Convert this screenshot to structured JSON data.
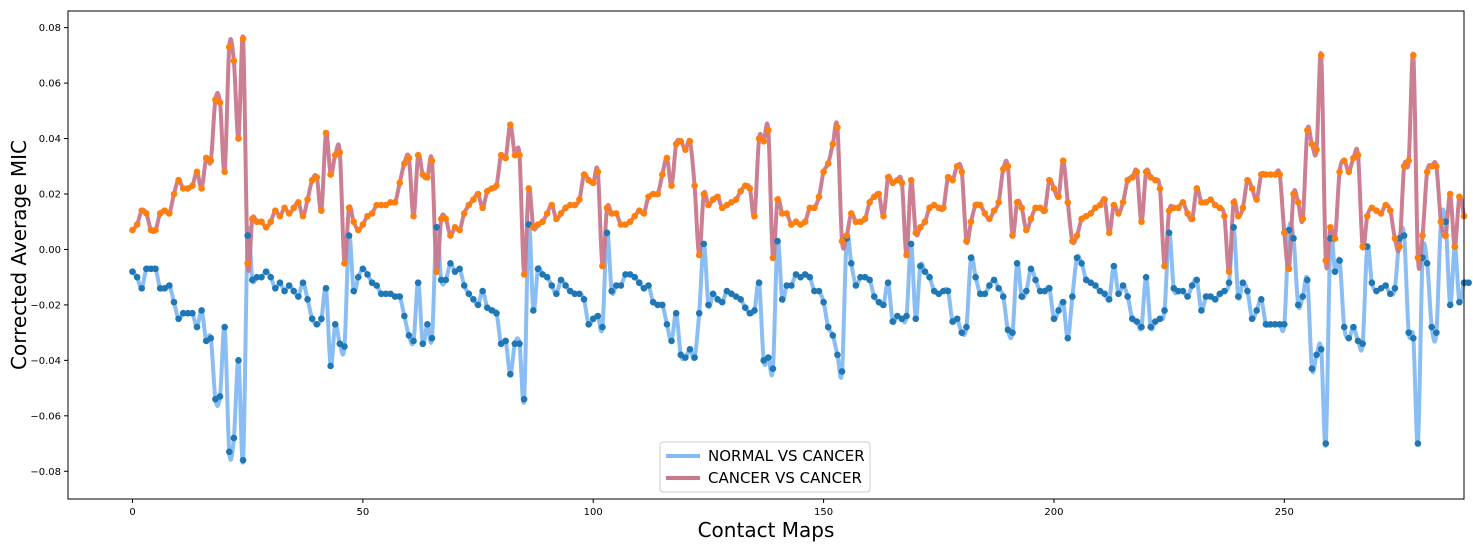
{
  "chart_data": {
    "type": "line",
    "title": "",
    "xlabel": "Contact Maps",
    "ylabel": "Corrected Average MIC",
    "xlim": [
      -14,
      289
    ],
    "ylim": [
      -0.09,
      0.086
    ],
    "xticks": [
      0,
      50,
      100,
      150,
      200,
      250
    ],
    "yticks": [
      -0.08,
      -0.06,
      -0.04,
      -0.02,
      0.0,
      0.02,
      0.04,
      0.06,
      0.08
    ],
    "xtick_labels": [
      "0",
      "50",
      "100",
      "150",
      "200",
      "250"
    ],
    "ytick_labels": [
      "−0.08",
      "−0.06",
      "−0.04",
      "−0.02",
      "0.00",
      "0.02",
      "0.04",
      "0.06",
      "0.08"
    ],
    "grid": false,
    "legend_placement": "lower-center",
    "x_start": 0,
    "series": [
      {
        "name": "CANCER VS CANCER",
        "line_color": "#c9788c",
        "marker_color": "#ff7f0e",
        "values": [
          0.007,
          0.009,
          0.014,
          0.013,
          0.007,
          0.007,
          0.013,
          0.014,
          0.013,
          0.02,
          0.025,
          0.022,
          0.022,
          0.023,
          0.028,
          0.022,
          0.033,
          0.032,
          0.054,
          0.053,
          0.028,
          0.073,
          0.068,
          0.04,
          0.076,
          -0.005,
          0.011,
          0.01,
          0.01,
          0.008,
          0.01,
          0.014,
          0.012,
          0.015,
          0.013,
          0.015,
          0.017,
          0.012,
          0.018,
          0.025,
          0.026,
          0.014,
          0.042,
          0.027,
          0.034,
          0.035,
          -0.005,
          0.015,
          0.01,
          0.007,
          0.009,
          0.012,
          0.013,
          0.016,
          0.016,
          0.016,
          0.017,
          0.017,
          0.024,
          0.031,
          0.033,
          0.012,
          0.034,
          0.027,
          0.026,
          0.032,
          -0.008,
          0.011,
          0.011,
          0.005,
          0.008,
          0.007,
          0.013,
          0.016,
          0.018,
          0.02,
          0.015,
          0.021,
          0.022,
          0.023,
          0.034,
          0.033,
          0.045,
          0.034,
          0.034,
          -0.009,
          0.022,
          0.008,
          0.009,
          0.01,
          0.013,
          0.016,
          0.011,
          0.013,
          0.015,
          0.016,
          0.016,
          0.018,
          0.027,
          0.025,
          0.024,
          0.028,
          -0.006,
          0.015,
          0.013,
          0.013,
          0.009,
          0.009,
          0.01,
          0.012,
          0.014,
          0.013,
          0.019,
          0.02,
          0.02,
          0.027,
          0.033,
          0.023,
          0.038,
          0.039,
          0.036,
          0.039,
          0.023,
          -0.002,
          0.02,
          0.016,
          0.018,
          0.019,
          0.015,
          0.016,
          0.017,
          0.018,
          0.021,
          0.023,
          0.022,
          0.012,
          0.04,
          0.039,
          0.043,
          -0.003,
          0.018,
          0.013,
          0.013,
          0.009,
          0.01,
          0.009,
          0.01,
          0.015,
          0.015,
          0.019,
          0.028,
          0.031,
          0.038,
          0.044,
          0.003,
          0.005,
          0.013,
          0.01,
          0.01,
          0.011,
          0.017,
          0.019,
          0.02,
          0.012,
          0.026,
          0.024,
          0.025,
          0.024,
          -0.002,
          0.025,
          0.006,
          0.008,
          0.01,
          0.015,
          0.016,
          0.015,
          0.015,
          0.026,
          0.025,
          0.03,
          0.028,
          0.003,
          0.01,
          0.016,
          0.016,
          0.013,
          0.011,
          0.014,
          0.017,
          0.029,
          0.03,
          0.005,
          0.017,
          0.015,
          0.007,
          0.011,
          0.015,
          0.015,
          0.014,
          0.025,
          0.022,
          0.019,
          0.032,
          0.017,
          0.003,
          0.005,
          0.011,
          0.012,
          0.013,
          0.015,
          0.016,
          0.018,
          0.006,
          0.016,
          0.013,
          0.017,
          0.025,
          0.026,
          0.028,
          0.01,
          0.028,
          0.026,
          0.025,
          0.022,
          -0.006,
          0.014,
          0.015,
          0.015,
          0.017,
          0.013,
          0.011,
          0.022,
          0.017,
          0.017,
          0.018,
          0.016,
          0.015,
          0.012,
          -0.008,
          0.017,
          0.012,
          0.015,
          0.025,
          0.022,
          0.018,
          0.027,
          0.027,
          0.027,
          0.027,
          0.027,
          0.006,
          -0.007,
          0.02,
          0.017,
          0.011,
          0.043,
          0.038,
          0.036,
          0.07,
          -0.004,
          0.008,
          0.004,
          0.028,
          0.032,
          0.028,
          0.033,
          0.034,
          0.001,
          0.012,
          0.015,
          0.014,
          0.013,
          0.016,
          0.014,
          0.004,
          0.001,
          0.03,
          0.032,
          0.07,
          -0.003,
          0.005,
          0.028,
          0.03,
          0.03,
          0.01,
          0.005,
          0.02,
          0.001,
          0.019,
          0.012
        ]
      },
      {
        "name": "NORMAL VS CANCER",
        "line_color": "#84b9f2",
        "marker_color": "#1f77b4",
        "values": [
          -0.008,
          -0.01,
          -0.014,
          -0.007,
          -0.007,
          -0.007,
          -0.014,
          -0.014,
          -0.013,
          -0.019,
          -0.025,
          -0.023,
          -0.023,
          -0.023,
          -0.028,
          -0.022,
          -0.033,
          -0.032,
          -0.054,
          -0.053,
          -0.028,
          -0.073,
          -0.068,
          -0.04,
          -0.076,
          0.005,
          -0.011,
          -0.01,
          -0.01,
          -0.008,
          -0.01,
          -0.014,
          -0.012,
          -0.015,
          -0.013,
          -0.015,
          -0.017,
          -0.012,
          -0.018,
          -0.025,
          -0.027,
          -0.025,
          -0.014,
          -0.042,
          -0.027,
          -0.034,
          -0.035,
          0.005,
          -0.015,
          -0.01,
          -0.007,
          -0.009,
          -0.012,
          -0.013,
          -0.016,
          -0.016,
          -0.016,
          -0.017,
          -0.017,
          -0.024,
          -0.031,
          -0.033,
          -0.012,
          -0.034,
          -0.027,
          -0.032,
          0.008,
          -0.011,
          -0.011,
          -0.005,
          -0.008,
          -0.007,
          -0.013,
          -0.016,
          -0.018,
          -0.02,
          -0.015,
          -0.021,
          -0.022,
          -0.023,
          -0.034,
          -0.033,
          -0.045,
          -0.034,
          -0.034,
          -0.054,
          0.009,
          -0.022,
          -0.007,
          -0.009,
          -0.01,
          -0.013,
          -0.016,
          -0.011,
          -0.013,
          -0.015,
          -0.016,
          -0.016,
          -0.018,
          -0.027,
          -0.025,
          -0.024,
          -0.028,
          0.006,
          -0.015,
          -0.013,
          -0.013,
          -0.009,
          -0.009,
          -0.01,
          -0.012,
          -0.014,
          -0.013,
          -0.019,
          -0.02,
          -0.02,
          -0.027,
          -0.033,
          -0.023,
          -0.038,
          -0.039,
          -0.036,
          -0.039,
          -0.023,
          0.002,
          -0.02,
          -0.016,
          -0.018,
          -0.019,
          -0.015,
          -0.016,
          -0.017,
          -0.018,
          -0.021,
          -0.023,
          -0.022,
          -0.012,
          -0.04,
          -0.039,
          -0.043,
          0.003,
          -0.018,
          -0.013,
          -0.013,
          -0.009,
          -0.01,
          -0.009,
          -0.01,
          -0.015,
          -0.015,
          -0.019,
          -0.028,
          -0.031,
          -0.038,
          -0.044,
          0.004,
          -0.005,
          -0.013,
          -0.01,
          -0.01,
          -0.011,
          -0.017,
          -0.019,
          -0.02,
          -0.012,
          -0.026,
          -0.024,
          -0.025,
          -0.024,
          0.002,
          -0.025,
          -0.006,
          -0.008,
          -0.01,
          -0.015,
          -0.016,
          -0.015,
          -0.015,
          -0.026,
          -0.025,
          -0.03,
          -0.028,
          -0.003,
          -0.01,
          -0.016,
          -0.016,
          -0.013,
          -0.011,
          -0.014,
          -0.017,
          -0.029,
          -0.03,
          -0.005,
          -0.017,
          -0.015,
          -0.007,
          -0.011,
          -0.015,
          -0.015,
          -0.014,
          -0.025,
          -0.022,
          -0.019,
          -0.032,
          -0.017,
          -0.003,
          -0.005,
          -0.011,
          -0.012,
          -0.013,
          -0.015,
          -0.016,
          -0.018,
          -0.006,
          -0.016,
          -0.013,
          -0.017,
          -0.025,
          -0.026,
          -0.028,
          -0.01,
          -0.028,
          -0.026,
          -0.025,
          -0.022,
          0.006,
          -0.014,
          -0.015,
          -0.015,
          -0.017,
          -0.013,
          -0.011,
          -0.022,
          -0.017,
          -0.017,
          -0.018,
          -0.016,
          -0.015,
          -0.012,
          0.008,
          -0.017,
          -0.012,
          -0.015,
          -0.025,
          -0.022,
          -0.018,
          -0.027,
          -0.027,
          -0.027,
          -0.027,
          -0.027,
          0.007,
          0.004,
          -0.02,
          -0.017,
          -0.011,
          -0.043,
          -0.038,
          -0.036,
          -0.07,
          0.004,
          -0.008,
          -0.004,
          -0.028,
          -0.032,
          -0.028,
          -0.033,
          -0.034,
          0.001,
          -0.012,
          -0.015,
          -0.014,
          -0.013,
          -0.016,
          -0.014,
          0.004,
          0.005,
          -0.03,
          -0.032,
          -0.07,
          -0.003,
          -0.005,
          -0.028,
          -0.03,
          0.01,
          0.01,
          -0.02,
          0.001,
          -0.019,
          -0.012,
          -0.012
        ]
      }
    ]
  }
}
